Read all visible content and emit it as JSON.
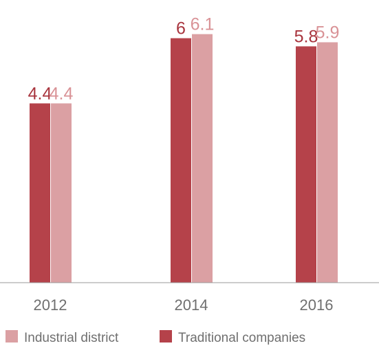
{
  "chart_data": {
    "type": "bar",
    "categories": [
      "2012",
      "2014",
      "2016"
    ],
    "series": [
      {
        "name": "Traditional companies",
        "color": "#b5424a",
        "values": [
          4.4,
          6,
          5.8
        ]
      },
      {
        "name": "Industrial district",
        "color": "#dba0a3",
        "values": [
          4.4,
          6.1,
          5.9
        ]
      }
    ],
    "ylim": [
      0,
      6.6
    ],
    "legend": "bottom-left"
  }
}
